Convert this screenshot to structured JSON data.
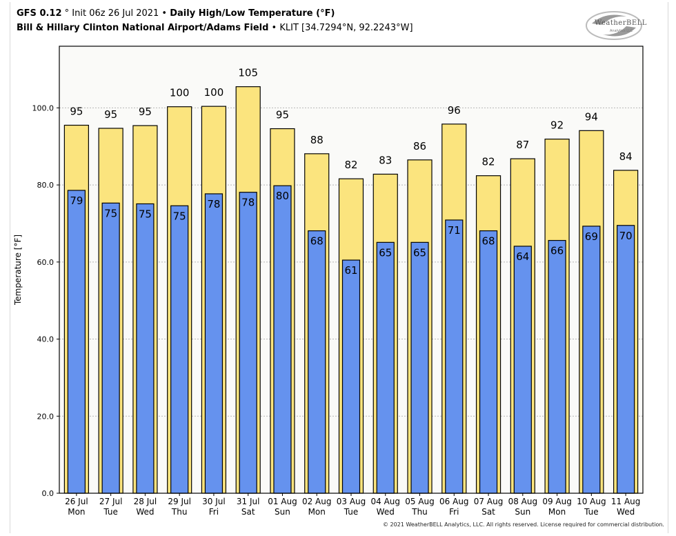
{
  "header": {
    "model": "GFS 0.12",
    "model_suffix": "° Init 06z 26 Jul 2021 •",
    "product": "Daily High/Low Temperature (°F)",
    "station_name": "Bill & Hillary Clinton National Airport/Adams Field",
    "station_info": "• KLIT [34.7294°N, 92.2243°W]"
  },
  "logo": {
    "text": "WeatherBELL",
    "subtext": "Analytics LLC"
  },
  "copyright": "© 2021 WeatherBELL Analytics, LLC. All rights reserved. License required for commercial distribution.",
  "chart_data": {
    "type": "bar",
    "ylabel": "Temperature [°F]",
    "ylim": [
      0,
      116
    ],
    "yticks": [
      "0.0",
      "20.0",
      "40.0",
      "60.0",
      "80.0",
      "100.0"
    ],
    "grid": true,
    "categories": [
      [
        "26 Jul",
        "Mon"
      ],
      [
        "27 Jul",
        "Tue"
      ],
      [
        "28 Jul",
        "Wed"
      ],
      [
        "29 Jul",
        "Thu"
      ],
      [
        "30 Jul",
        "Fri"
      ],
      [
        "31 Jul",
        "Sat"
      ],
      [
        "01 Aug",
        "Sun"
      ],
      [
        "02 Aug",
        "Mon"
      ],
      [
        "03 Aug",
        "Tue"
      ],
      [
        "04 Aug",
        "Wed"
      ],
      [
        "05 Aug",
        "Thu"
      ],
      [
        "06 Aug",
        "Fri"
      ],
      [
        "07 Aug",
        "Sat"
      ],
      [
        "08 Aug",
        "Sun"
      ],
      [
        "09 Aug",
        "Mon"
      ],
      [
        "10 Aug",
        "Tue"
      ],
      [
        "11 Aug",
        "Wed"
      ]
    ],
    "series": [
      {
        "values": [
          95.5,
          94.7,
          95.4,
          100.3,
          100.4,
          105.5,
          94.6,
          88.1,
          81.6,
          82.8,
          86.5,
          95.8,
          82.4,
          86.8,
          91.9,
          94.1,
          83.8
        ],
        "labels": [
          "95",
          "95",
          "95",
          "100",
          "100",
          "105",
          "95",
          "88",
          "82",
          "83",
          "86",
          "96",
          "82",
          "87",
          "92",
          "94",
          "84"
        ],
        "color": "#fbe47e"
      },
      {
        "values": [
          78.6,
          75.3,
          75.1,
          74.6,
          77.7,
          78.1,
          79.8,
          68.1,
          60.5,
          65.1,
          65.1,
          70.9,
          68.1,
          64.1,
          65.6,
          69.3,
          69.5
        ],
        "labels": [
          "79",
          "75",
          "75",
          "75",
          "78",
          "78",
          "80",
          "68",
          "61",
          "65",
          "65",
          "71",
          "68",
          "64",
          "66",
          "69",
          "70"
        ],
        "color": "#6592ee"
      }
    ]
  }
}
